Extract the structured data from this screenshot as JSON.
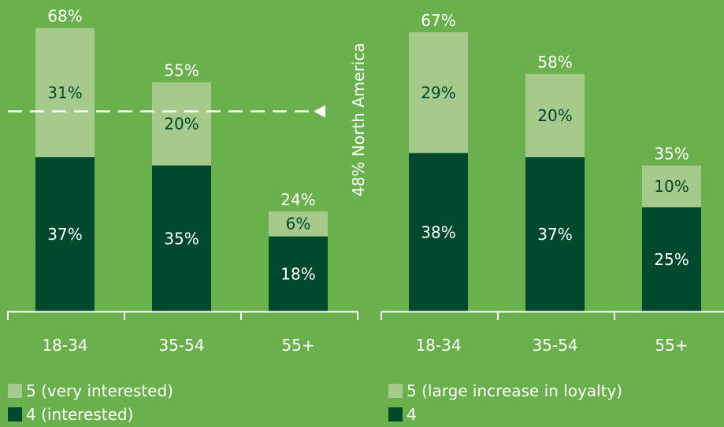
{
  "colors": {
    "background": "#6ab04c",
    "light": "#a6c98c",
    "dark": "#00492e",
    "axis": "#ffffff",
    "reference_line": "#ffffff"
  },
  "chart_data": [
    {
      "type": "bar",
      "stacked": true,
      "categories": [
        "18-34",
        "35-54",
        "55+"
      ],
      "series": [
        {
          "name": "4 (interested)",
          "color": "#00492e",
          "values": [
            37,
            35,
            18
          ],
          "labels": [
            "37%",
            "35%",
            "18%"
          ]
        },
        {
          "name": "5 (very interested)",
          "color": "#a6c98c",
          "values": [
            31,
            20,
            6
          ],
          "labels": [
            "31%",
            "20%",
            "6%"
          ]
        }
      ],
      "totals": [
        68,
        55,
        24
      ],
      "total_labels": [
        "68%",
        "55%",
        "24%"
      ],
      "ylim": [
        0,
        80
      ],
      "reference_line": {
        "value": 48,
        "label": "48% North America",
        "style": "dashed"
      },
      "legend": [
        "5 (very interested)",
        "4 (interested)"
      ],
      "legend_placement": "bottom-left",
      "grid": false
    },
    {
      "type": "bar",
      "stacked": true,
      "categories": [
        "18-34",
        "35-54",
        "55+"
      ],
      "series": [
        {
          "name": "4",
          "color": "#00492e",
          "values": [
            38,
            37,
            25
          ],
          "labels": [
            "38%",
            "37%",
            "25%"
          ]
        },
        {
          "name": "5 (large increase in loyalty)",
          "color": "#a6c98c",
          "values": [
            29,
            20,
            10
          ],
          "labels": [
            "29%",
            "20%",
            "10%"
          ]
        }
      ],
      "totals": [
        67,
        58,
        35
      ],
      "total_labels": [
        "67%",
        "58%",
        "35%"
      ],
      "ylim": [
        0,
        80
      ],
      "legend": [
        "5 (large increase in loyalty)",
        "4"
      ],
      "legend_placement": "bottom-right",
      "grid": false
    }
  ]
}
